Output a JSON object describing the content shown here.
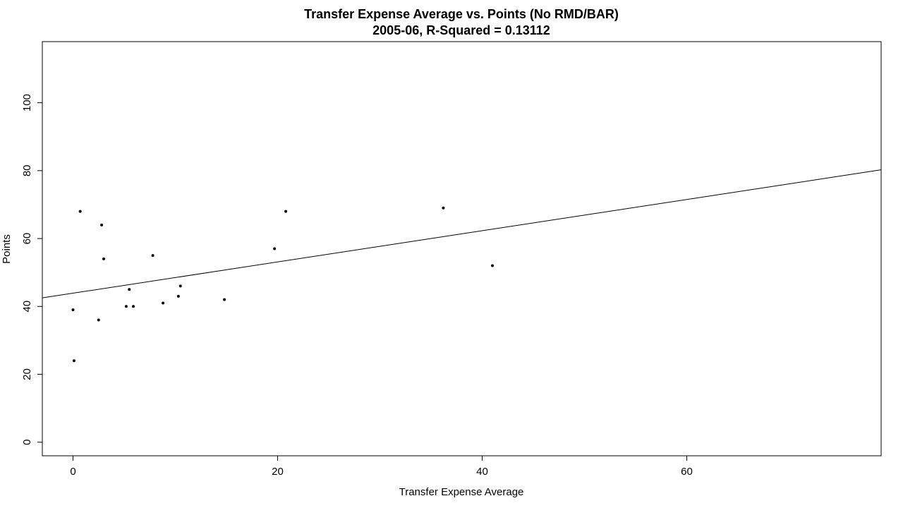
{
  "chart_data": {
    "type": "scatter",
    "title": "Transfer Expense Average vs. Points (No RMD/BAR)",
    "subtitle": "2005-06, R-Squared = 0.13112",
    "xlabel": "Transfer Expense Average",
    "ylabel": "Points",
    "xlim": [
      -3,
      79
    ],
    "ylim": [
      -4,
      118
    ],
    "x_ticks": [
      0,
      20,
      40,
      60
    ],
    "y_ticks": [
      0,
      20,
      40,
      60,
      80,
      100
    ],
    "x_tick_labels": [
      "0",
      "20",
      "40",
      "60"
    ],
    "y_tick_labels": [
      "0",
      "20",
      "40",
      "60",
      "80",
      "100"
    ],
    "points": [
      {
        "x": 0.0,
        "y": 39
      },
      {
        "x": 0.1,
        "y": 24
      },
      {
        "x": 0.7,
        "y": 68
      },
      {
        "x": 2.5,
        "y": 36
      },
      {
        "x": 2.8,
        "y": 64
      },
      {
        "x": 3.0,
        "y": 54
      },
      {
        "x": 5.2,
        "y": 40
      },
      {
        "x": 5.5,
        "y": 45
      },
      {
        "x": 5.9,
        "y": 40
      },
      {
        "x": 7.8,
        "y": 55
      },
      {
        "x": 8.8,
        "y": 41
      },
      {
        "x": 10.3,
        "y": 43
      },
      {
        "x": 10.5,
        "y": 46
      },
      {
        "x": 14.8,
        "y": 42
      },
      {
        "x": 19.7,
        "y": 57
      },
      {
        "x": 20.8,
        "y": 68
      },
      {
        "x": 36.2,
        "y": 69
      },
      {
        "x": 41.0,
        "y": 52
      }
    ],
    "regression_line": {
      "intercept": 43.9,
      "slope": 0.46
    },
    "grid": false,
    "legend": "none"
  }
}
